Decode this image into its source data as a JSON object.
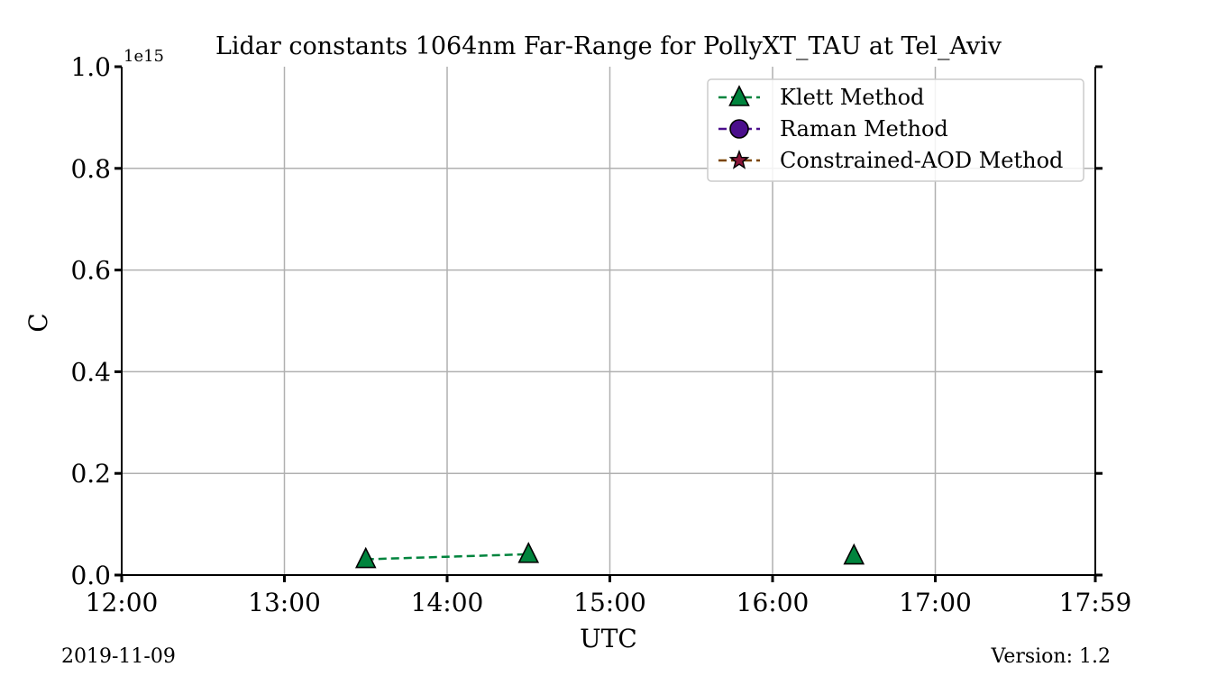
{
  "chart_data": {
    "type": "line",
    "title": "Lidar constants 1064nm Far-Range for PollyXT_TAU at Tel_Aviv",
    "xlabel": "UTC",
    "ylabel": "C",
    "y_exponent_label": "1e15",
    "x_ticks": [
      "12:00",
      "13:00",
      "14:00",
      "15:00",
      "16:00",
      "17:00",
      "17:59"
    ],
    "x_tick_hours": [
      12,
      13,
      14,
      15,
      16,
      17,
      17.9833
    ],
    "xlim": [
      12,
      17.9833
    ],
    "y_ticks": [
      "0.0",
      "0.2",
      "0.4",
      "0.6",
      "0.8",
      "1.0"
    ],
    "y_tick_values": [
      0,
      0.2,
      0.4,
      0.6,
      0.8,
      1.0
    ],
    "ylim": [
      0,
      1.0
    ],
    "grid": true,
    "legend_position": "top-right",
    "series": [
      {
        "name": "Klett Method",
        "color": "#00843d",
        "marker": "triangle",
        "x": [
          13.5,
          14.5,
          16.5
        ],
        "y": [
          0.031,
          0.041,
          0.038
        ],
        "segments": [
          [
            0,
            1
          ],
          [
            2,
            2
          ]
        ]
      },
      {
        "name": "Raman Method",
        "color": "#4b0f8c",
        "marker": "circle",
        "x": [],
        "y": [],
        "segments": []
      },
      {
        "name": "Constrained-AOD Method",
        "color": "#7a4500",
        "marker_color": "#8a1538",
        "marker": "star",
        "x": [],
        "y": [],
        "segments": []
      }
    ]
  },
  "footer": {
    "date": "2019-11-09",
    "version": "Version: 1.2"
  }
}
